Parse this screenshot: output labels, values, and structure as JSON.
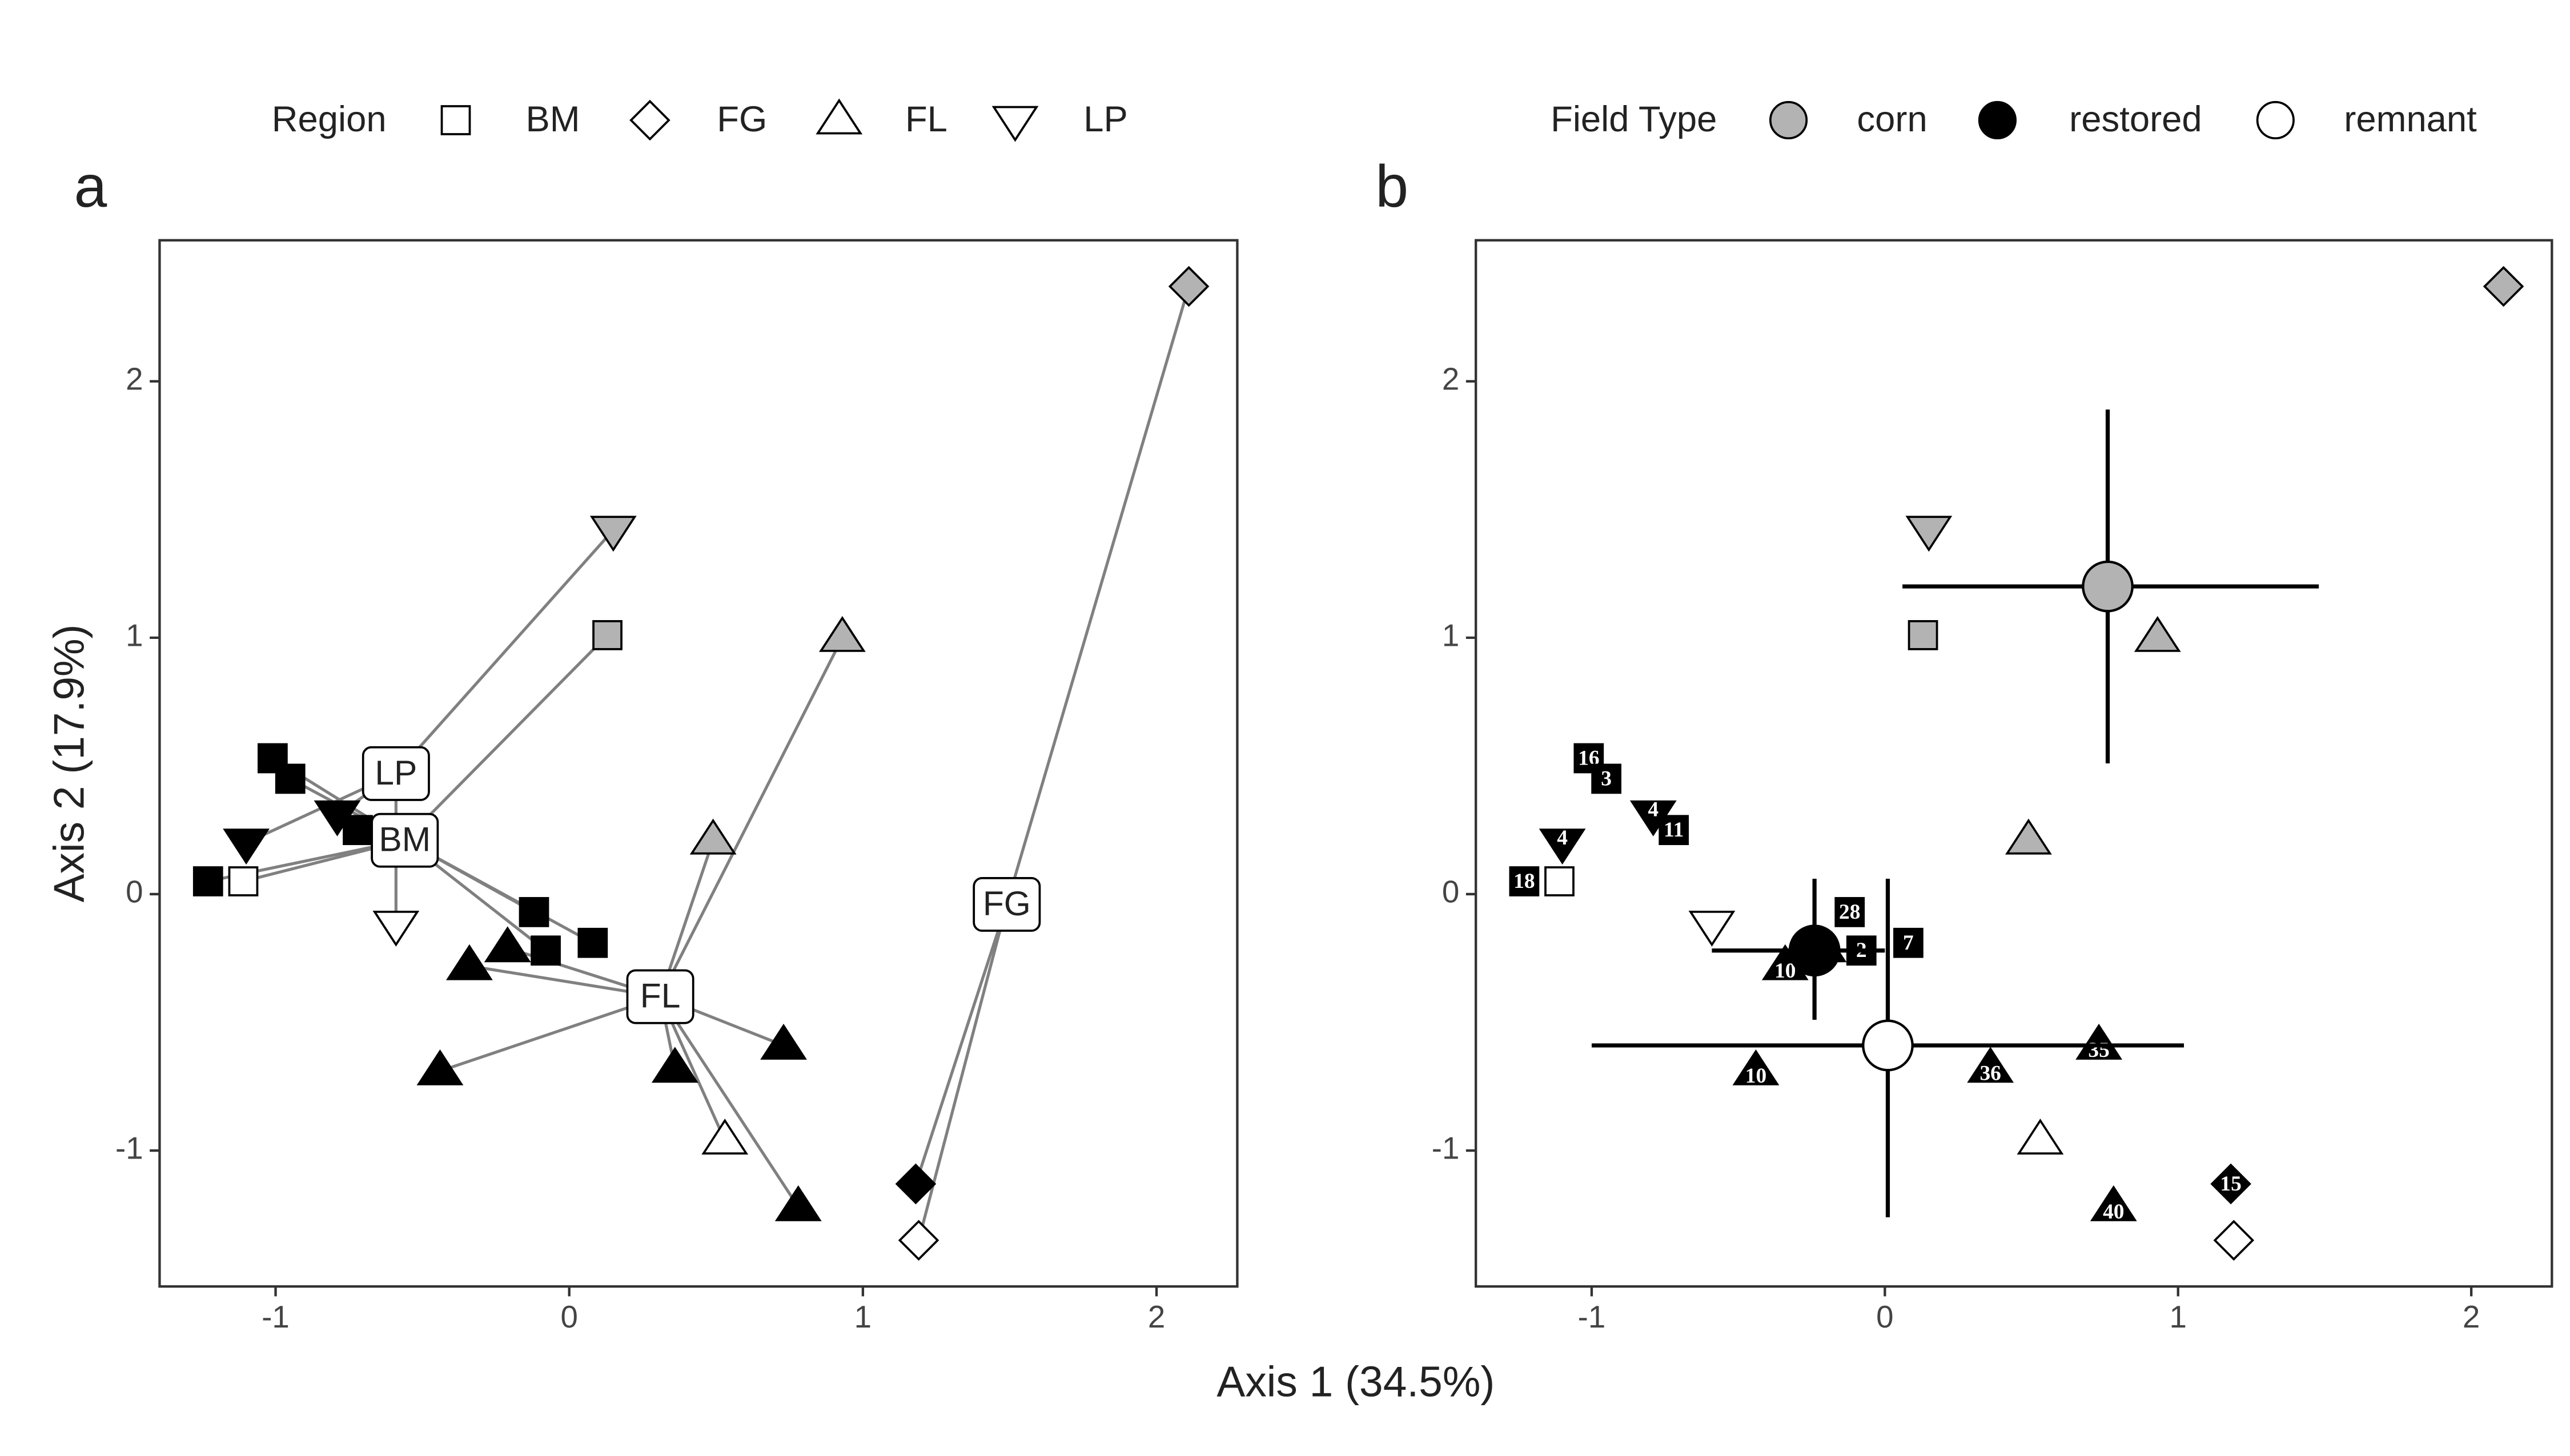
{
  "chart_data": [
    {
      "type": "scatter",
      "panel_label": "a",
      "x": [
        -1.01,
        -0.95,
        -0.72,
        -1.23,
        -0.12,
        -0.08,
        0.08,
        -1.11,
        0.13,
        2.11,
        1.18,
        1.19,
        -0.34,
        -0.21,
        -0.44,
        0.36,
        0.73,
        0.78,
        0.93,
        0.49,
        0.53,
        -1.1,
        -0.79,
        0.15,
        -0.59
      ],
      "y": [
        0.53,
        0.45,
        0.25,
        0.05,
        -0.07,
        -0.22,
        -0.19,
        0.05,
        1.01,
        2.37,
        -1.13,
        -1.35,
        -0.28,
        -0.21,
        -0.69,
        -0.68,
        -0.59,
        -1.22,
        1.0,
        0.21,
        -0.96,
        0.2,
        0.31,
        1.42,
        -0.12
      ],
      "region": [
        "BM",
        "BM",
        "BM",
        "BM",
        "BM",
        "BM",
        "BM",
        "BM",
        "BM",
        "FG",
        "FG",
        "FG",
        "FL",
        "FL",
        "FL",
        "FL",
        "FL",
        "FL",
        "FL",
        "FL",
        "FL",
        "LP",
        "LP",
        "LP",
        "LP"
      ],
      "field_type": [
        "restored",
        "restored",
        "restored",
        "restored",
        "restored",
        "restored",
        "restored",
        "remnant",
        "corn",
        "corn",
        "restored",
        "remnant",
        "restored",
        "restored",
        "restored",
        "restored",
        "restored",
        "restored",
        "corn",
        "corn",
        "remnant",
        "restored",
        "restored",
        "corn",
        "remnant"
      ],
      "centroids": {
        "names": [
          "LP",
          "BM",
          "FL",
          "FG"
        ],
        "x": [
          -0.59,
          -0.56,
          0.31,
          1.49
        ],
        "y": [
          0.47,
          0.21,
          -0.4,
          -0.04
        ]
      },
      "xlim": [
        -1.395,
        2.275
      ],
      "ylim": [
        -1.53,
        2.55
      ],
      "xticks": [
        -1,
        0,
        1,
        2
      ],
      "yticks": [
        -1,
        0,
        1,
        2
      ]
    },
    {
      "type": "scatter",
      "panel_label": "b",
      "x": [
        -1.01,
        -0.95,
        -0.72,
        -1.23,
        -0.12,
        -0.08,
        0.08,
        -1.11,
        0.13,
        2.11,
        1.18,
        1.19,
        -0.34,
        -0.21,
        -0.44,
        0.36,
        0.73,
        0.78,
        0.93,
        0.49,
        0.53,
        -1.1,
        -0.79,
        0.15,
        -0.59
      ],
      "y": [
        0.53,
        0.45,
        0.25,
        0.05,
        -0.07,
        -0.22,
        -0.19,
        0.05,
        1.01,
        2.37,
        -1.13,
        -1.35,
        -0.28,
        -0.21,
        -0.69,
        -0.68,
        -0.59,
        -1.22,
        1.0,
        0.21,
        -0.96,
        0.2,
        0.31,
        1.42,
        -0.12
      ],
      "region": [
        "BM",
        "BM",
        "BM",
        "BM",
        "BM",
        "BM",
        "BM",
        "BM",
        "BM",
        "FG",
        "FG",
        "FG",
        "FL",
        "FL",
        "FL",
        "FL",
        "FL",
        "FL",
        "FL",
        "FL",
        "FL",
        "LP",
        "LP",
        "LP",
        "LP"
      ],
      "field_type": [
        "restored",
        "restored",
        "restored",
        "restored",
        "restored",
        "restored",
        "restored",
        "remnant",
        "corn",
        "corn",
        "restored",
        "remnant",
        "restored",
        "restored",
        "restored",
        "restored",
        "restored",
        "restored",
        "corn",
        "corn",
        "remnant",
        "restored",
        "restored",
        "corn",
        "remnant"
      ],
      "point_labels": [
        16,
        3,
        11,
        18,
        28,
        2,
        7,
        null,
        null,
        null,
        15,
        null,
        10,
        10,
        10,
        36,
        35,
        40,
        null,
        null,
        null,
        4,
        4,
        null,
        null
      ],
      "centroids": {
        "names": [
          "corn",
          "restored",
          "remnant"
        ],
        "x": [
          0.76,
          -0.24,
          0.01
        ],
        "y": [
          1.2,
          -0.22,
          -0.59
        ],
        "x_low": [
          0.06,
          -0.59,
          -1.0
        ],
        "x_high": [
          1.48,
          0.0,
          1.02
        ],
        "y_low": [
          0.51,
          -0.49,
          -1.26
        ],
        "y_high": [
          1.89,
          0.06,
          0.06
        ]
      },
      "xlim": [
        -1.395,
        2.275
      ],
      "ylim": [
        -1.53,
        2.55
      ],
      "xticks": [
        -1,
        0,
        1,
        2
      ],
      "yticks": [
        -1,
        0,
        1,
        2
      ]
    }
  ],
  "legends": {
    "region": {
      "title": "Region",
      "entries": [
        "BM",
        "FG",
        "FL",
        "LP"
      ]
    },
    "field_type": {
      "title": "Field Type",
      "entries": [
        "corn",
        "restored",
        "remnant"
      ],
      "colors": [
        "#b3b3b3",
        "#000000",
        "#ffffff"
      ]
    }
  },
  "x_label": "Axis 1 (34.5%)",
  "y_label": "Axis 2 (17.9%)"
}
